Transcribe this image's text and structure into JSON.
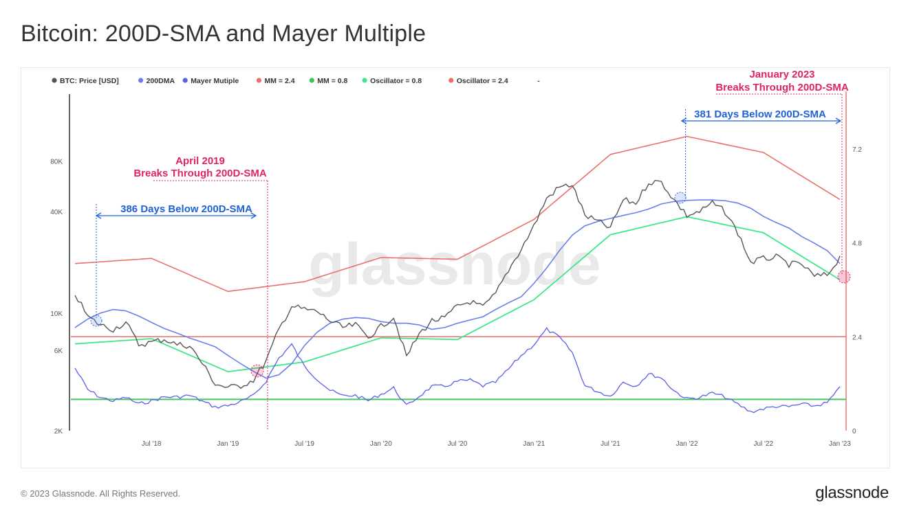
{
  "title": "Bitcoin: 200D-SMA and Mayer Multiple",
  "footer": {
    "copyright": "© 2023 Glassnode. All Rights Reserved.",
    "logo": "glassnode"
  },
  "watermark": "glassnode",
  "annotations": {
    "april2019_line1": "April 2019",
    "april2019_line2": "Breaks Through 200D-SMA",
    "jan2023_line1": "January 2023",
    "jan2023_line2": "Breaks Through 200D-SMA",
    "span2019": "386 Days Below 200D-SMA",
    "span2023": "381 Days Below 200D-SMA"
  },
  "colors": {
    "price": "#555555",
    "sma200": "#6b7fe8",
    "mayer": "#5a5ee8",
    "mm24": "#ea6f6a",
    "mm08": "#3bc45a",
    "osc08": "#3de88a",
    "osc24": "#ea6f6a",
    "annotation_red": "#e0245e",
    "annotation_blue": "#1f62d8"
  },
  "chart_data": {
    "type": "line",
    "legend": [
      "BTC: Price [USD]",
      "200DMA",
      "Mayer Mutiple",
      "MM = 2.4",
      "MM = 0.8",
      "Oscillator = 0.8",
      "Oscillator = 2.4",
      "-"
    ],
    "x_ticks": [
      "Jul '18",
      "Jan '19",
      "Jul '19",
      "Jan '20",
      "Jul '20",
      "Jan '21",
      "Jul '21",
      "Jan '22",
      "Jul '22",
      "Jan '23"
    ],
    "y_left_ticks": [
      "2K",
      "6K",
      "10K",
      "40K",
      "80K"
    ],
    "y_right_ticks": [
      "0",
      "2.4",
      "4.8",
      "7.2"
    ],
    "x_range": [
      "2018-01",
      "2023-01"
    ],
    "y_left_scale": "log",
    "series": [
      {
        "name": "BTC: Price [USD]",
        "x": [
          "2018-01",
          "2018-02",
          "2018-03",
          "2018-04",
          "2018-05",
          "2018-06",
          "2018-07",
          "2018-08",
          "2018-09",
          "2018-10",
          "2018-11",
          "2018-12",
          "2019-01",
          "2019-02",
          "2019-03",
          "2019-04",
          "2019-05",
          "2019-06",
          "2019-07",
          "2019-08",
          "2019-09",
          "2019-10",
          "2019-11",
          "2019-12",
          "2020-01",
          "2020-02",
          "2020-03",
          "2020-04",
          "2020-05",
          "2020-06",
          "2020-07",
          "2020-08",
          "2020-09",
          "2020-10",
          "2020-11",
          "2020-12",
          "2021-01",
          "2021-02",
          "2021-03",
          "2021-04",
          "2021-05",
          "2021-06",
          "2021-07",
          "2021-08",
          "2021-09",
          "2021-10",
          "2021-11",
          "2021-12",
          "2022-01",
          "2022-02",
          "2022-03",
          "2022-04",
          "2022-05",
          "2022-06",
          "2022-07",
          "2022-08",
          "2022-09",
          "2022-10",
          "2022-11",
          "2022-12",
          "2023-01"
        ],
        "values": [
          13000,
          9500,
          8500,
          8000,
          8800,
          6500,
          6700,
          7000,
          6500,
          6400,
          5000,
          3800,
          3600,
          3700,
          4000,
          5200,
          8000,
          11000,
          10500,
          10200,
          9000,
          8200,
          8500,
          7200,
          8300,
          9500,
          5500,
          7500,
          9000,
          9300,
          11000,
          11700,
          10800,
          13000,
          18000,
          24000,
          33000,
          48000,
          56000,
          58000,
          38000,
          35000,
          32000,
          47000,
          45000,
          60000,
          60000,
          47000,
          38000,
          40000,
          45000,
          40000,
          30000,
          20000,
          21000,
          21500,
          19500,
          19500,
          16500,
          16800,
          21500
        ]
      },
      {
        "name": "200DMA",
        "x": [
          "2018-01",
          "2018-02",
          "2018-03",
          "2018-04",
          "2018-05",
          "2018-06",
          "2018-07",
          "2018-08",
          "2018-09",
          "2018-10",
          "2018-11",
          "2018-12",
          "2019-01",
          "2019-02",
          "2019-03",
          "2019-04",
          "2019-05",
          "2019-06",
          "2019-07",
          "2019-08",
          "2019-09",
          "2019-10",
          "2019-11",
          "2019-12",
          "2020-01",
          "2020-02",
          "2020-03",
          "2020-04",
          "2020-05",
          "2020-06",
          "2020-07",
          "2020-08",
          "2020-09",
          "2020-10",
          "2020-11",
          "2020-12",
          "2021-01",
          "2021-02",
          "2021-03",
          "2021-04",
          "2021-05",
          "2021-06",
          "2021-07",
          "2021-08",
          "2021-09",
          "2021-10",
          "2021-11",
          "2021-12",
          "2022-01",
          "2022-02",
          "2022-03",
          "2022-04",
          "2022-05",
          "2022-06",
          "2022-07",
          "2022-08",
          "2022-09",
          "2022-10",
          "2022-11",
          "2022-12",
          "2023-01"
        ],
        "values": [
          8200,
          9200,
          10000,
          10500,
          10300,
          9600,
          8800,
          8100,
          7600,
          7100,
          6700,
          6300,
          5600,
          5000,
          4500,
          4100,
          4300,
          5000,
          6400,
          7700,
          8700,
          9200,
          9400,
          9300,
          8900,
          8700,
          8700,
          8500,
          8000,
          8200,
          8700,
          9100,
          9500,
          10500,
          11500,
          12500,
          15000,
          18500,
          23500,
          29000,
          33000,
          35000,
          36500,
          38000,
          39500,
          41500,
          44500,
          46000,
          46700,
          47000,
          47000,
          46500,
          45000,
          42000,
          37500,
          34500,
          32000,
          28500,
          26000,
          23500,
          19700
        ]
      },
      {
        "name": "Mayer Mutiple",
        "x": [
          "2018-01",
          "2018-02",
          "2018-03",
          "2018-04",
          "2018-05",
          "2018-06",
          "2018-07",
          "2018-08",
          "2018-09",
          "2018-10",
          "2018-11",
          "2018-12",
          "2019-01",
          "2019-02",
          "2019-03",
          "2019-04",
          "2019-05",
          "2019-06",
          "2019-07",
          "2019-08",
          "2019-09",
          "2019-10",
          "2019-11",
          "2019-12",
          "2020-01",
          "2020-02",
          "2020-03",
          "2020-04",
          "2020-05",
          "2020-06",
          "2020-07",
          "2020-08",
          "2020-09",
          "2020-10",
          "2020-11",
          "2020-12",
          "2021-01",
          "2021-02",
          "2021-03",
          "2021-04",
          "2021-05",
          "2021-06",
          "2021-07",
          "2021-08",
          "2021-09",
          "2021-10",
          "2021-11",
          "2021-12",
          "2022-01",
          "2022-02",
          "2022-03",
          "2022-04",
          "2022-05",
          "2022-06",
          "2022-07",
          "2022-08",
          "2022-09",
          "2022-10",
          "2022-11",
          "2022-12",
          "2023-01"
        ],
        "values": [
          1.6,
          1.05,
          0.85,
          0.76,
          0.85,
          0.68,
          0.76,
          0.86,
          0.86,
          0.9,
          0.75,
          0.6,
          0.64,
          0.74,
          0.89,
          1.27,
          1.86,
          2.2,
          1.64,
          1.32,
          1.03,
          0.89,
          0.9,
          0.77,
          0.93,
          1.09,
          0.63,
          0.88,
          1.13,
          1.13,
          1.26,
          1.29,
          1.14,
          1.24,
          1.57,
          1.92,
          2.2,
          2.59,
          2.38,
          2.0,
          1.15,
          1.0,
          0.88,
          1.24,
          1.14,
          1.45,
          1.35,
          1.02,
          0.81,
          0.85,
          0.96,
          0.86,
          0.67,
          0.48,
          0.56,
          0.62,
          0.61,
          0.68,
          0.63,
          0.71,
          1.09
        ]
      },
      {
        "name": "MM = 2.4",
        "values": [
          2.4
        ]
      },
      {
        "name": "MM = 0.8",
        "values": [
          0.8
        ]
      },
      {
        "name": "Oscillator = 0.8",
        "note_units": "USD",
        "x": [
          "2018-01",
          "2018-07",
          "2019-01",
          "2019-07",
          "2020-01",
          "2020-07",
          "2021-01",
          "2021-07",
          "2022-01",
          "2022-07",
          "2023-01"
        ],
        "values": [
          6560,
          7040,
          4480,
          5120,
          7120,
          6960,
          12000,
          29200,
          37360,
          30000,
          15760
        ]
      },
      {
        "name": "Oscillator = 2.4",
        "note_units": "USD",
        "x": [
          "2018-01",
          "2018-07",
          "2019-01",
          "2019-07",
          "2020-01",
          "2020-07",
          "2021-01",
          "2021-07",
          "2022-01",
          "2022-07",
          "2023-01"
        ],
        "values": [
          19680,
          21120,
          13440,
          15360,
          21360,
          20880,
          36000,
          87600,
          112080,
          90000,
          47280
        ]
      }
    ],
    "y_right_range": [
      0,
      8.6
    ],
    "grid": false,
    "legend_position": "top"
  }
}
